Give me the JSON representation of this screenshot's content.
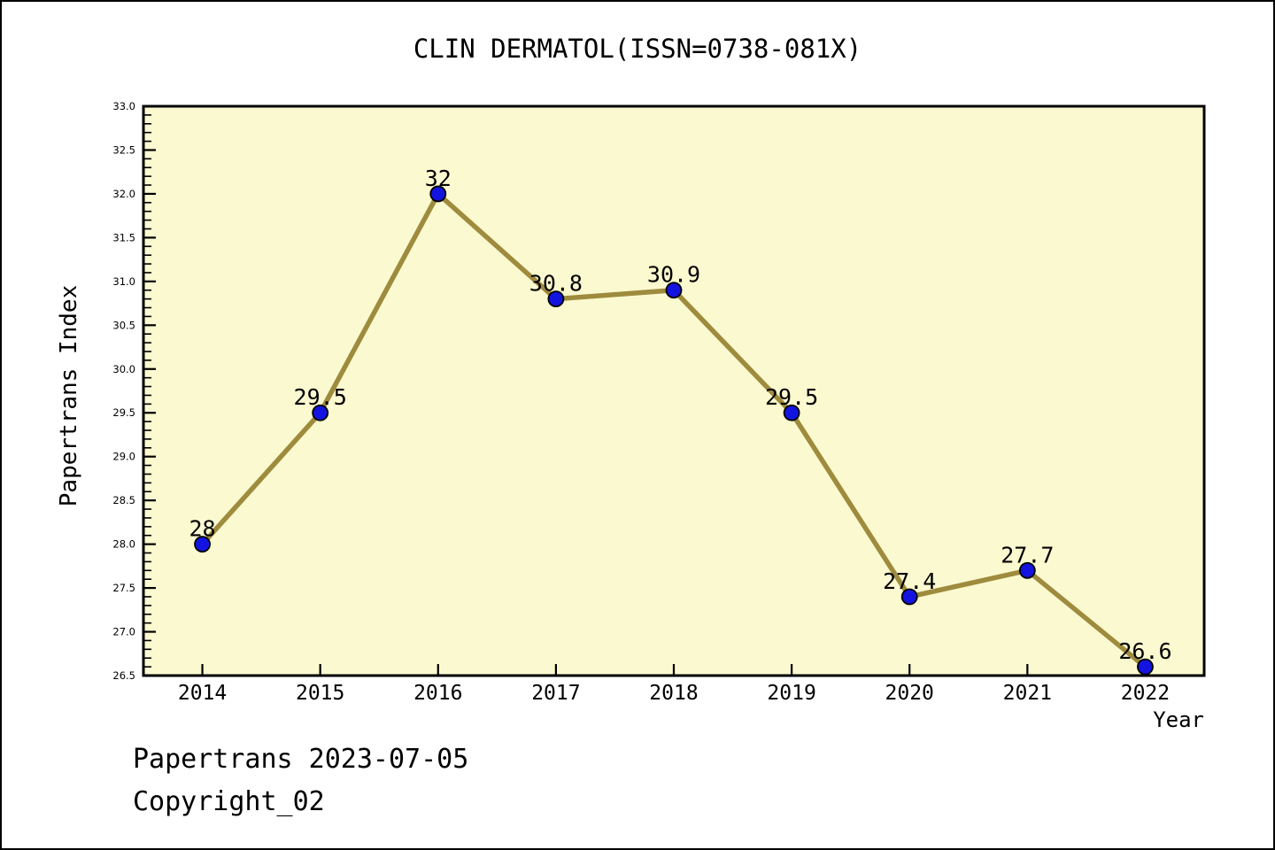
{
  "chart_data": {
    "type": "line",
    "title": "CLIN DERMATOL(ISSN=0738-081X)",
    "xlabel": "Year",
    "ylabel": "Papertrans Index",
    "categories": [
      "2014",
      "2015",
      "2016",
      "2017",
      "2018",
      "2019",
      "2020",
      "2021",
      "2022"
    ],
    "values": [
      28,
      29.5,
      32,
      30.8,
      30.9,
      29.5,
      27.4,
      27.7,
      26.6
    ],
    "point_labels": [
      "28",
      "29.5",
      "32",
      "30.8",
      "30.9",
      "29.5",
      "27.4",
      "27.7",
      "26.6"
    ],
    "ylim": [
      26.5,
      33.0
    ],
    "y_tick_labels": [
      "26.5",
      "27.0",
      "27.5",
      "28.0",
      "28.5",
      "29.0",
      "29.5",
      "30.0",
      "30.5",
      "31.0",
      "31.5",
      "32.0",
      "32.5",
      "33.0"
    ],
    "y_minor_step": 0.1,
    "grid": false,
    "legend_position": "none",
    "colors": {
      "line": "#9E8B3D",
      "marker": "#1414E0",
      "marker_edge": "#000000",
      "plot_bg": "#FBF9CF",
      "axis": "#000000",
      "text": "#000000"
    }
  },
  "footer": {
    "line1": "Papertrans 2023-07-05",
    "line2": "Copyright_02"
  }
}
